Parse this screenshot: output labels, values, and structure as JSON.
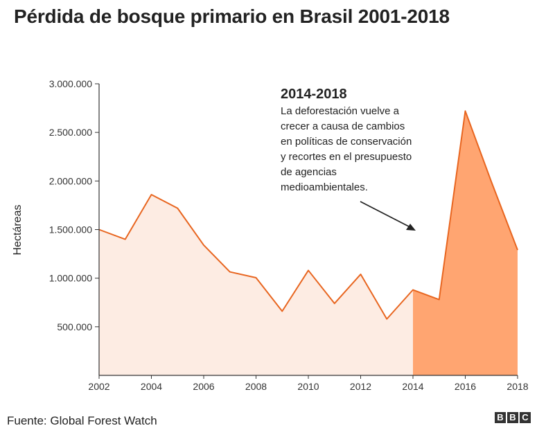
{
  "title": "Pérdida de bosque primario en Brasil 2001-2018",
  "source": "Fuente: Global Forest Watch",
  "logo": [
    "B",
    "B",
    "C"
  ],
  "annotation": {
    "title": "2014-2018",
    "lines": [
      "La deforestación vuelve a",
      "crecer a causa de cambios",
      "en políticas de conservación",
      "y recortes en el presupuesto",
      "de agencias",
      "medioambientales."
    ]
  },
  "colors": {
    "line": "#e8651f",
    "fill_light": "#fdece3",
    "fill_highlight": "#ffa571",
    "axis": "#333333"
  },
  "chart_data": {
    "type": "area",
    "title": "Pérdida de bosque primario en Brasil 2001-2018",
    "xlabel": "",
    "ylabel": "Hectáreas",
    "x": [
      2002,
      2003,
      2004,
      2005,
      2006,
      2007,
      2008,
      2009,
      2010,
      2011,
      2012,
      2013,
      2014,
      2015,
      2016,
      2017,
      2018
    ],
    "values": [
      1500000,
      1400000,
      1860000,
      1720000,
      1340000,
      1065000,
      1005000,
      660000,
      1080000,
      740000,
      1040000,
      580000,
      880000,
      780000,
      2720000,
      1990000,
      1290000
    ],
    "xlim": [
      2002,
      2018
    ],
    "ylim": [
      0,
      3000000
    ],
    "x_ticks": [
      2002,
      2004,
      2006,
      2008,
      2010,
      2012,
      2014,
      2016,
      2018
    ],
    "y_ticks": [
      500000,
      1000000,
      1500000,
      2000000,
      2500000,
      3000000
    ],
    "y_tick_labels": [
      "500.000",
      "1.000.000",
      "1.500.000",
      "2.000.000",
      "2.500.000",
      "3.000.000"
    ],
    "highlight_range": [
      2014,
      2018
    ],
    "grid": false
  }
}
